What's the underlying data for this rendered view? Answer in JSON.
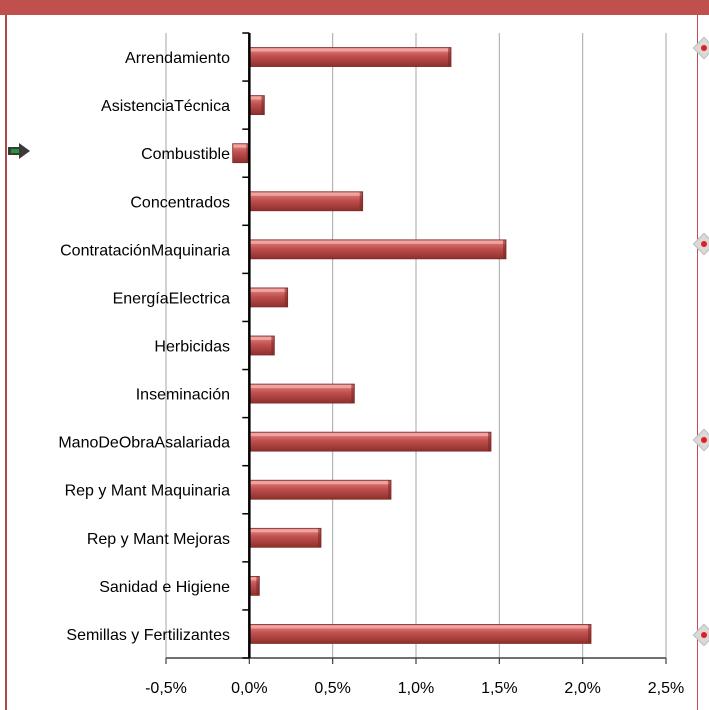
{
  "chart_data": {
    "type": "bar",
    "orientation": "horizontal",
    "categories": [
      "Arrendamiento",
      "AsistenciaTécnica",
      "Combustible",
      "Concentrados",
      "ContrataciónMaquinaria",
      "EnergíaElectrica",
      "Herbicidas",
      "Inseminación",
      "ManoDeObraAsalariada",
      "Rep y Mant Maquinaria",
      "Rep y Mant Mejoras",
      "Sanidad e Higiene",
      "Semillas y Fertilizantes"
    ],
    "values": [
      1.21,
      0.09,
      -0.1,
      0.68,
      1.54,
      0.23,
      0.15,
      0.63,
      1.45,
      0.85,
      0.43,
      0.06,
      2.05
    ],
    "xlim": [
      -0.5,
      2.5
    ],
    "xticks": [
      -0.5,
      0.0,
      0.5,
      1.0,
      1.5,
      2.0,
      2.5
    ],
    "xtick_labels": [
      "-0,5%",
      "0,0%",
      "0,5%",
      "1,0%",
      "1,5%",
      "2,0%",
      "2,5%"
    ],
    "grid": "vertical",
    "bar_color": "#c0504d",
    "title": "",
    "xlabel": "",
    "ylabel": ""
  },
  "colors": {
    "frame_accent": "#c0504d",
    "gridline": "#a6a6a6",
    "marker_dot": "#e02020",
    "arrow": "#1f9b3c"
  },
  "icons": {
    "selection_handles": "diamond-handle-icon",
    "move_handle": "green-arrow-icon"
  }
}
